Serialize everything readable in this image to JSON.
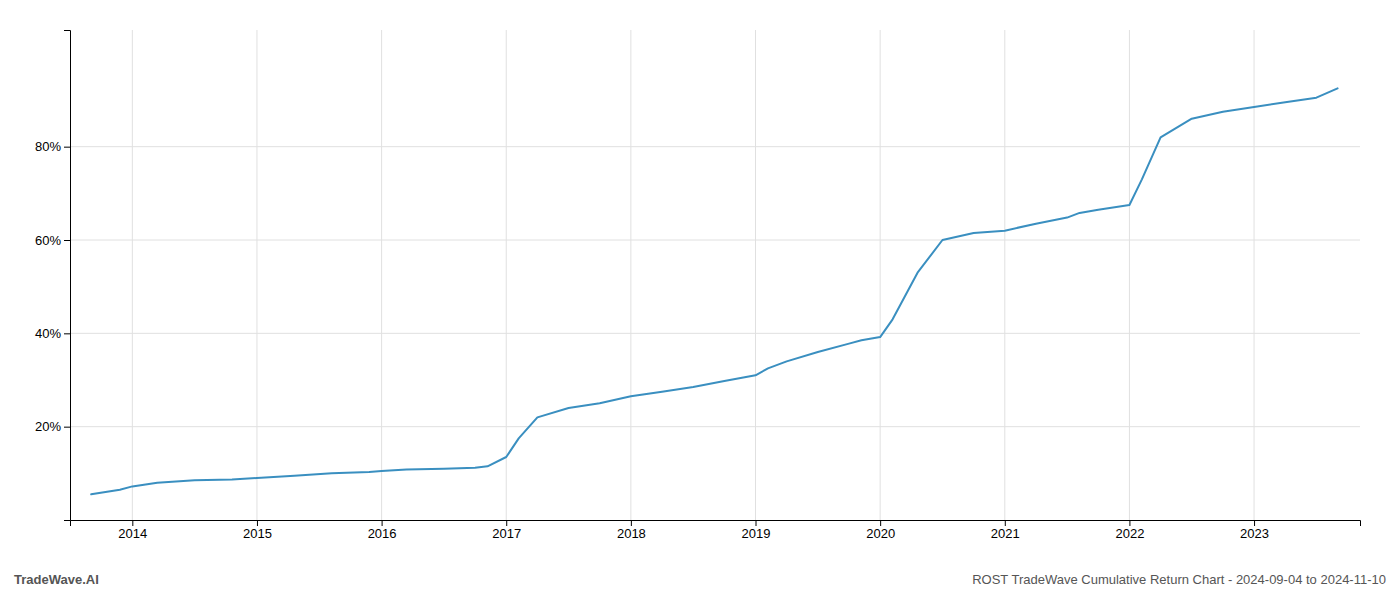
{
  "chart_data": {
    "type": "line",
    "title": "ROST TradeWave Cumulative Return Chart - 2024-09-04 to 2024-11-10",
    "annotations": [
      "TradeWave.AI"
    ],
    "color": "#3a8fc0",
    "grid": true,
    "x": [
      2013.67,
      2013.9,
      2014.0,
      2014.2,
      2014.5,
      2014.8,
      2015.0,
      2015.3,
      2015.6,
      2015.9,
      2016.0,
      2016.2,
      2016.5,
      2016.75,
      2016.85,
      2017.0,
      2017.1,
      2017.25,
      2017.5,
      2017.75,
      2018.0,
      2018.25,
      2018.5,
      2018.75,
      2019.0,
      2019.1,
      2019.25,
      2019.5,
      2019.75,
      2019.85,
      2020.0,
      2020.1,
      2020.3,
      2020.5,
      2020.75,
      2021.0,
      2021.25,
      2021.5,
      2021.6,
      2021.75,
      2022.0,
      2022.1,
      2022.25,
      2022.5,
      2022.75,
      2023.0,
      2023.25,
      2023.5,
      2023.67
    ],
    "values": [
      0.055,
      0.065,
      0.072,
      0.08,
      0.085,
      0.087,
      0.09,
      0.095,
      0.1,
      0.103,
      0.105,
      0.108,
      0.11,
      0.112,
      0.115,
      0.135,
      0.175,
      0.22,
      0.24,
      0.25,
      0.265,
      0.275,
      0.285,
      0.298,
      0.31,
      0.325,
      0.34,
      0.36,
      0.378,
      0.385,
      0.392,
      0.43,
      0.53,
      0.6,
      0.615,
      0.62,
      0.635,
      0.648,
      0.658,
      0.665,
      0.675,
      0.73,
      0.82,
      0.86,
      0.875,
      0.885,
      0.895,
      0.905,
      0.925
    ],
    "xlim": [
      2013.5,
      2023.85
    ],
    "xticks": [
      2014,
      2015,
      2016,
      2017,
      2018,
      2019,
      2020,
      2021,
      2022,
      2023
    ],
    "ylim": [
      0.0,
      1.05
    ],
    "yticks": [
      {
        "value": 0.2,
        "label": "20%"
      },
      {
        "value": 0.4,
        "label": "40%"
      },
      {
        "value": 0.6,
        "label": "60%"
      },
      {
        "value": 0.8,
        "label": "80%"
      }
    ]
  }
}
